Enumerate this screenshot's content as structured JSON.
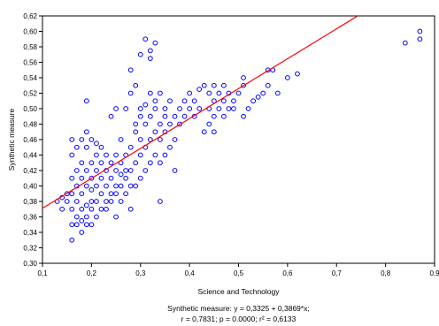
{
  "chart_data": {
    "type": "scatter",
    "xlabel": "Science and Technology",
    "ylabel": "Synthetic measure",
    "xlim": [
      0.1,
      0.9
    ],
    "ylim": [
      0.3,
      0.62
    ],
    "x_ticks": [
      "0,1",
      "0,2",
      "0,3",
      "0,4",
      "0,5",
      "0,6",
      "0,7",
      "0,8",
      "0,9"
    ],
    "y_ticks": [
      "0,30",
      "0,32",
      "0,34",
      "0,36",
      "0,38",
      "0,40",
      "0,42",
      "0,44",
      "0,46",
      "0,48",
      "0,50",
      "0,52",
      "0,54",
      "0,56",
      "0,58",
      "0,60",
      "0,62"
    ],
    "grid": false,
    "marker_color": "#0000ff",
    "line_color": "#ff0000",
    "regression": {
      "intercept": 0.3325,
      "slope": 0.3869
    },
    "equation_line1": "Synthetic measure:   y = 0,3325 + 0,3869*x;",
    "equation_line2": "r = 0,7831; p = 0.0000; r² = 0,6133",
    "points": [
      [
        0.13,
        0.38
      ],
      [
        0.14,
        0.37
      ],
      [
        0.14,
        0.385
      ],
      [
        0.15,
        0.38
      ],
      [
        0.15,
        0.39
      ],
      [
        0.16,
        0.33
      ],
      [
        0.16,
        0.35
      ],
      [
        0.16,
        0.37
      ],
      [
        0.16,
        0.39
      ],
      [
        0.16,
        0.41
      ],
      [
        0.16,
        0.44
      ],
      [
        0.16,
        0.46
      ],
      [
        0.17,
        0.35
      ],
      [
        0.17,
        0.36
      ],
      [
        0.17,
        0.38
      ],
      [
        0.17,
        0.4
      ],
      [
        0.17,
        0.42
      ],
      [
        0.17,
        0.45
      ],
      [
        0.18,
        0.34
      ],
      [
        0.18,
        0.355
      ],
      [
        0.18,
        0.37
      ],
      [
        0.18,
        0.39
      ],
      [
        0.18,
        0.41
      ],
      [
        0.18,
        0.43
      ],
      [
        0.18,
        0.46
      ],
      [
        0.19,
        0.35
      ],
      [
        0.19,
        0.36
      ],
      [
        0.19,
        0.375
      ],
      [
        0.19,
        0.4
      ],
      [
        0.19,
        0.42
      ],
      [
        0.19,
        0.45
      ],
      [
        0.19,
        0.47
      ],
      [
        0.19,
        0.51
      ],
      [
        0.2,
        0.35
      ],
      [
        0.2,
        0.37
      ],
      [
        0.2,
        0.38
      ],
      [
        0.2,
        0.395
      ],
      [
        0.2,
        0.41
      ],
      [
        0.2,
        0.43
      ],
      [
        0.2,
        0.46
      ],
      [
        0.21,
        0.36
      ],
      [
        0.21,
        0.38
      ],
      [
        0.21,
        0.4
      ],
      [
        0.21,
        0.42
      ],
      [
        0.21,
        0.44
      ],
      [
        0.21,
        0.455
      ],
      [
        0.22,
        0.37
      ],
      [
        0.22,
        0.39
      ],
      [
        0.22,
        0.41
      ],
      [
        0.22,
        0.43
      ],
      [
        0.22,
        0.45
      ],
      [
        0.23,
        0.37
      ],
      [
        0.23,
        0.38
      ],
      [
        0.23,
        0.4
      ],
      [
        0.23,
        0.42
      ],
      [
        0.23,
        0.44
      ],
      [
        0.24,
        0.38
      ],
      [
        0.24,
        0.39
      ],
      [
        0.24,
        0.41
      ],
      [
        0.24,
        0.43
      ],
      [
        0.24,
        0.49
      ],
      [
        0.25,
        0.36
      ],
      [
        0.25,
        0.39
      ],
      [
        0.25,
        0.4
      ],
      [
        0.25,
        0.42
      ],
      [
        0.25,
        0.44
      ],
      [
        0.25,
        0.5
      ],
      [
        0.26,
        0.38
      ],
      [
        0.26,
        0.4
      ],
      [
        0.26,
        0.415
      ],
      [
        0.26,
        0.43
      ],
      [
        0.26,
        0.46
      ],
      [
        0.27,
        0.39
      ],
      [
        0.27,
        0.41
      ],
      [
        0.27,
        0.42
      ],
      [
        0.27,
        0.44
      ],
      [
        0.27,
        0.5
      ],
      [
        0.28,
        0.37
      ],
      [
        0.28,
        0.4
      ],
      [
        0.28,
        0.42
      ],
      [
        0.28,
        0.45
      ],
      [
        0.28,
        0.52
      ],
      [
        0.28,
        0.55
      ],
      [
        0.29,
        0.4
      ],
      [
        0.29,
        0.43
      ],
      [
        0.29,
        0.47
      ],
      [
        0.29,
        0.48
      ],
      [
        0.29,
        0.53
      ],
      [
        0.3,
        0.41
      ],
      [
        0.3,
        0.44
      ],
      [
        0.3,
        0.46
      ],
      [
        0.3,
        0.49
      ],
      [
        0.3,
        0.5
      ],
      [
        0.3,
        0.57
      ],
      [
        0.31,
        0.42
      ],
      [
        0.31,
        0.45
      ],
      [
        0.31,
        0.48
      ],
      [
        0.31,
        0.505
      ],
      [
        0.31,
        0.59
      ],
      [
        0.32,
        0.43
      ],
      [
        0.32,
        0.46
      ],
      [
        0.32,
        0.49
      ],
      [
        0.32,
        0.52
      ],
      [
        0.32,
        0.565
      ],
      [
        0.32,
        0.575
      ],
      [
        0.33,
        0.44
      ],
      [
        0.33,
        0.47
      ],
      [
        0.33,
        0.5
      ],
      [
        0.33,
        0.51
      ],
      [
        0.33,
        0.585
      ],
      [
        0.34,
        0.38
      ],
      [
        0.34,
        0.43
      ],
      [
        0.34,
        0.46
      ],
      [
        0.34,
        0.48
      ],
      [
        0.34,
        0.52
      ],
      [
        0.35,
        0.44
      ],
      [
        0.35,
        0.47
      ],
      [
        0.35,
        0.49
      ],
      [
        0.35,
        0.5
      ],
      [
        0.36,
        0.45
      ],
      [
        0.36,
        0.48
      ],
      [
        0.36,
        0.51
      ],
      [
        0.37,
        0.42
      ],
      [
        0.37,
        0.46
      ],
      [
        0.37,
        0.49
      ],
      [
        0.38,
        0.48
      ],
      [
        0.38,
        0.5
      ],
      [
        0.39,
        0.49
      ],
      [
        0.39,
        0.51
      ],
      [
        0.4,
        0.5
      ],
      [
        0.4,
        0.52
      ],
      [
        0.41,
        0.49
      ],
      [
        0.41,
        0.51
      ],
      [
        0.42,
        0.5
      ],
      [
        0.42,
        0.525
      ],
      [
        0.43,
        0.53
      ],
      [
        0.43,
        0.47
      ],
      [
        0.44,
        0.48
      ],
      [
        0.44,
        0.5
      ],
      [
        0.44,
        0.52
      ],
      [
        0.45,
        0.49
      ],
      [
        0.45,
        0.51
      ],
      [
        0.45,
        0.53
      ],
      [
        0.45,
        0.47
      ],
      [
        0.46,
        0.5
      ],
      [
        0.46,
        0.52
      ],
      [
        0.47,
        0.49
      ],
      [
        0.47,
        0.51
      ],
      [
        0.47,
        0.53
      ],
      [
        0.48,
        0.5
      ],
      [
        0.48,
        0.52
      ],
      [
        0.49,
        0.51
      ],
      [
        0.49,
        0.5
      ],
      [
        0.5,
        0.52
      ],
      [
        0.51,
        0.53
      ],
      [
        0.51,
        0.54
      ],
      [
        0.51,
        0.49
      ],
      [
        0.52,
        0.5
      ],
      [
        0.53,
        0.51
      ],
      [
        0.54,
        0.515
      ],
      [
        0.55,
        0.52
      ],
      [
        0.56,
        0.53
      ],
      [
        0.56,
        0.55
      ],
      [
        0.57,
        0.55
      ],
      [
        0.58,
        0.52
      ],
      [
        0.6,
        0.54
      ],
      [
        0.62,
        0.545
      ],
      [
        0.84,
        0.585
      ],
      [
        0.87,
        0.59
      ],
      [
        0.87,
        0.6
      ]
    ]
  }
}
